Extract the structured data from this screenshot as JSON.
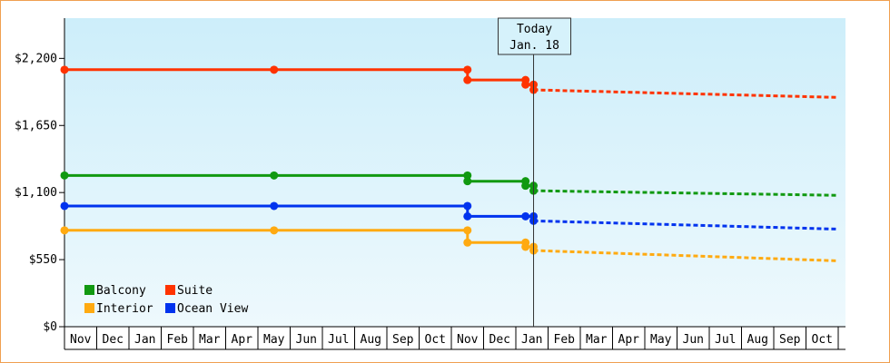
{
  "chart_data": {
    "type": "line",
    "title": "",
    "xlabel": "",
    "ylabel": "",
    "ylim": [
      0,
      2530
    ],
    "y_ticks": [
      {
        "value": 0,
        "label": "$0"
      },
      {
        "value": 550,
        "label": "$550"
      },
      {
        "value": 1100,
        "label": "$1,100"
      },
      {
        "value": 1650,
        "label": "$1,650"
      },
      {
        "value": 2200,
        "label": "$2,200"
      }
    ],
    "x_months": [
      "Nov",
      "Dec",
      "Jan",
      "Feb",
      "Mar",
      "Apr",
      "May",
      "Jun",
      "Jul",
      "Aug",
      "Sep",
      "Oct",
      "Nov",
      "Dec",
      "Jan",
      "Feb",
      "Mar",
      "Apr",
      "May",
      "Jun",
      "Jul",
      "Aug",
      "Sep",
      "Oct"
    ],
    "today_marker": {
      "line1": "Today",
      "line2": "Jan. 18",
      "x": 14.55
    },
    "legend_placement": "bottom-left",
    "grid": false,
    "series": [
      {
        "name": "Suite",
        "color": "#ff3300",
        "points": [
          [
            0,
            2107
          ],
          [
            6.5,
            2107
          ],
          [
            12.5,
            2107
          ],
          [
            12.5,
            2023
          ],
          [
            14.3,
            2023
          ],
          [
            14.3,
            1985
          ],
          [
            14.55,
            1985
          ],
          [
            14.55,
            1942
          ]
        ],
        "markers": [
          [
            0,
            2107
          ],
          [
            6.5,
            2107
          ],
          [
            12.5,
            2107
          ],
          [
            12.5,
            2023
          ],
          [
            14.3,
            2023
          ],
          [
            14.3,
            1985
          ],
          [
            14.55,
            1985
          ],
          [
            14.55,
            1942
          ]
        ],
        "forecast": [
          [
            14.55,
            1942
          ],
          [
            24,
            1880
          ]
        ]
      },
      {
        "name": "Balcony",
        "color": "#119911",
        "points": [
          [
            0,
            1240
          ],
          [
            6.5,
            1240
          ],
          [
            12.5,
            1240
          ],
          [
            12.5,
            1193
          ],
          [
            14.3,
            1193
          ],
          [
            14.3,
            1156
          ],
          [
            14.55,
            1156
          ],
          [
            14.55,
            1115
          ]
        ],
        "markers": [
          [
            0,
            1240
          ],
          [
            6.5,
            1240
          ],
          [
            12.5,
            1240
          ],
          [
            12.5,
            1193
          ],
          [
            14.3,
            1193
          ],
          [
            14.3,
            1156
          ],
          [
            14.55,
            1156
          ],
          [
            14.55,
            1115
          ]
        ],
        "forecast": [
          [
            14.55,
            1115
          ],
          [
            24,
            1077
          ]
        ]
      },
      {
        "name": "Ocean View",
        "color": "#0033ee",
        "points": [
          [
            0,
            990
          ],
          [
            6.5,
            990
          ],
          [
            12.5,
            990
          ],
          [
            12.5,
            905
          ],
          [
            14.3,
            905
          ],
          [
            14.55,
            905
          ],
          [
            14.55,
            868
          ]
        ],
        "markers": [
          [
            0,
            990
          ],
          [
            6.5,
            990
          ],
          [
            12.5,
            990
          ],
          [
            12.5,
            905
          ],
          [
            14.3,
            905
          ],
          [
            14.55,
            905
          ],
          [
            14.55,
            868
          ]
        ],
        "forecast": [
          [
            14.55,
            868
          ],
          [
            24,
            800
          ]
        ]
      },
      {
        "name": "Interior",
        "color": "#ffaa11",
        "points": [
          [
            0,
            790
          ],
          [
            6.5,
            790
          ],
          [
            12.5,
            790
          ],
          [
            12.5,
            690
          ],
          [
            14.3,
            690
          ],
          [
            14.3,
            655
          ],
          [
            14.55,
            655
          ],
          [
            14.55,
            625
          ]
        ],
        "markers": [
          [
            0,
            790
          ],
          [
            6.5,
            790
          ],
          [
            12.5,
            790
          ],
          [
            12.5,
            690
          ],
          [
            14.3,
            690
          ],
          [
            14.3,
            655
          ],
          [
            14.55,
            655
          ],
          [
            14.55,
            625
          ]
        ],
        "forecast": [
          [
            14.55,
            625
          ],
          [
            24,
            540
          ]
        ]
      }
    ],
    "legend": [
      {
        "name": "Balcony",
        "color": "#119911"
      },
      {
        "name": "Suite",
        "color": "#ff3300"
      },
      {
        "name": "Interior",
        "color": "#ffaa11"
      },
      {
        "name": "Ocean View",
        "color": "#0033ee"
      }
    ]
  }
}
